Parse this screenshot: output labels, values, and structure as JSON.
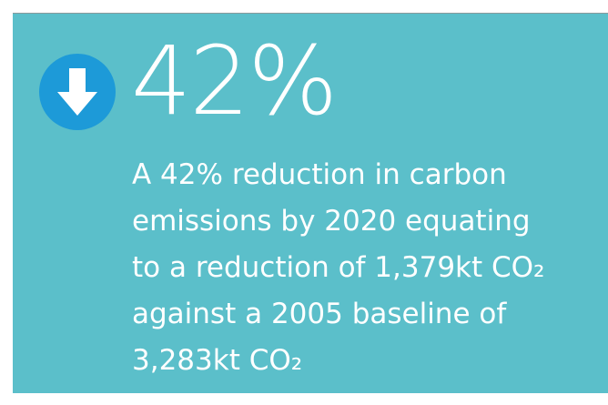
{
  "stat": "42%",
  "description": [
    "A 42% reduction in carbon",
    "emissions by 2020 equating",
    "to a reduction of 1,379kt CO₂",
    "against a 2005 baseline of",
    "3,283kt CO₂"
  ]
}
